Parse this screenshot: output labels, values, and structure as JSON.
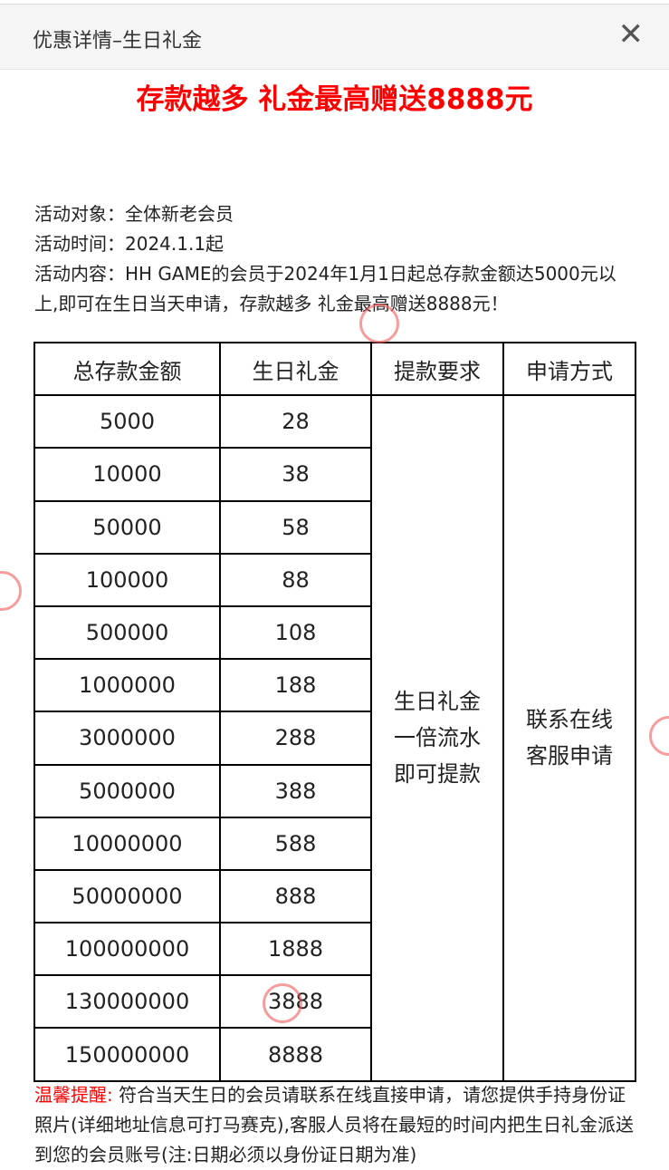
{
  "header": {
    "title": "优惠详情–生日礼金",
    "close_icon": "close-icon"
  },
  "banner": "存款越多 礼金最高赠送8888元",
  "info": {
    "target": "活动对象：全体新老会员",
    "time": "活动时间：2024.1.1起",
    "content": "活动内容：HH GAME的会员于2024年1月1日起总存款金额达5000元以上,即可在生日当天申请，存款越多 礼金最高赠送8888元！"
  },
  "table": {
    "headers": [
      "总存款金额",
      "生日礼金",
      "提款要求",
      "申请方式"
    ],
    "rows": [
      [
        "5000",
        "28"
      ],
      [
        "10000",
        "38"
      ],
      [
        "50000",
        "58"
      ],
      [
        "100000",
        "88"
      ],
      [
        "500000",
        "108"
      ],
      [
        "1000000",
        "188"
      ],
      [
        "3000000",
        "288"
      ],
      [
        "5000000",
        "388"
      ],
      [
        "10000000",
        "588"
      ],
      [
        "50000000",
        "888"
      ],
      [
        "100000000",
        "1888"
      ],
      [
        "130000000",
        "3888"
      ],
      [
        "150000000",
        "8888"
      ]
    ],
    "withdraw_requirement": "生日礼金\n一倍流水\n即可提款",
    "apply_method": "联系在线\n客服申请"
  },
  "notice": {
    "label": "温馨提醒:",
    "text": " 符合当天生日的会员请联系在线直接申请，请您提供手持身份证照片(详细地址信息可打马赛克),客服人员将在最短的时间内把生日礼金派送到您的会员账号(注:日期必须以身份证日期为准)"
  },
  "colors": {
    "accent": "#ff0000"
  }
}
